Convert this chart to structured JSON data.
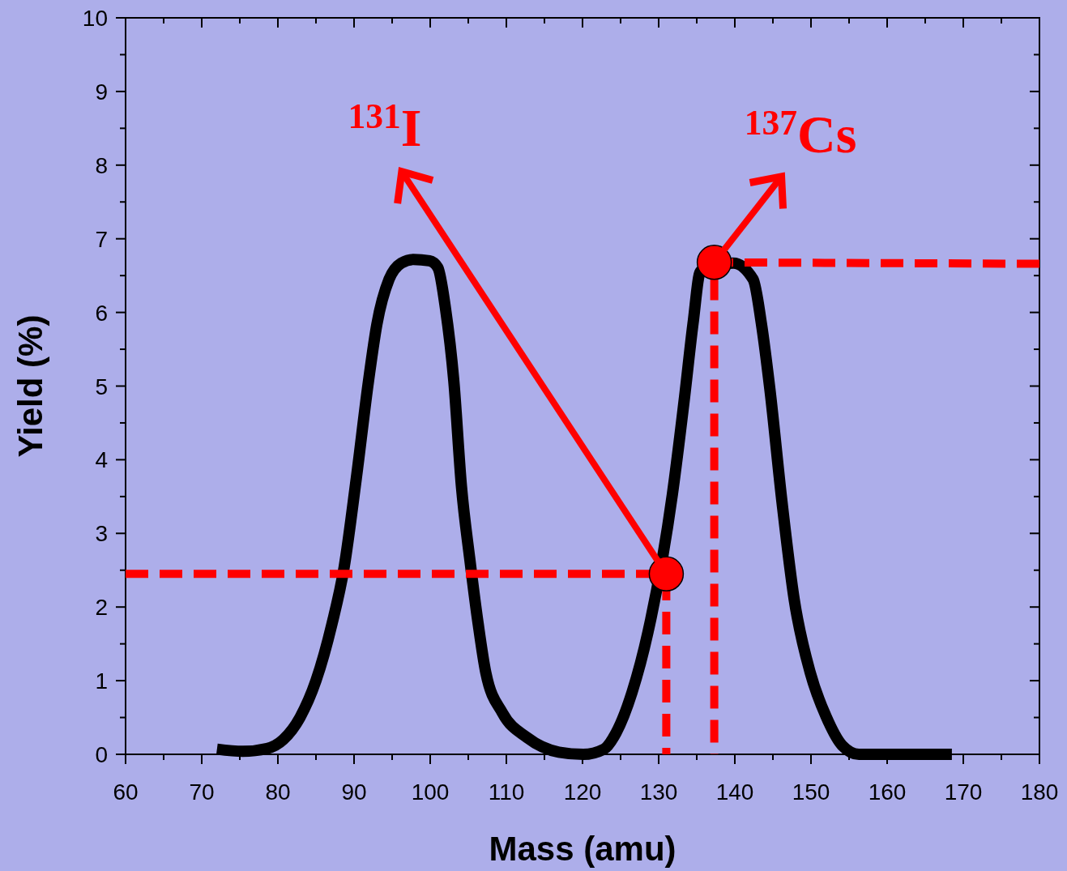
{
  "chart_data": {
    "type": "line",
    "xlabel": "Mass (amu)",
    "ylabel": "Yield (%)",
    "xlim": [
      60,
      180
    ],
    "ylim": [
      0,
      10
    ],
    "xticks": [
      60,
      {
        "value": 65,
        "label": null
      },
      70,
      {
        "value": 75,
        "label": null
      },
      80,
      {
        "value": 85,
        "label": null
      },
      90,
      {
        "value": 95,
        "label": null
      },
      100,
      {
        "value": 105,
        "label": null
      },
      110,
      {
        "value": 115,
        "label": null
      },
      120,
      {
        "value": 125,
        "label": null
      },
      130,
      {
        "value": 135,
        "label": null
      },
      140,
      {
        "value": 145,
        "label": null
      },
      150,
      {
        "value": 155,
        "label": null
      },
      160,
      {
        "value": 165,
        "label": null
      },
      170,
      {
        "value": 175,
        "label": null
      },
      180
    ],
    "yticks": [
      0,
      {
        "value": 0.5,
        "label": null
      },
      1,
      {
        "value": 1.5,
        "label": null
      },
      2,
      {
        "value": 2.5,
        "label": null
      },
      3,
      {
        "value": 3.5,
        "label": null
      },
      4,
      {
        "value": 4.5,
        "label": null
      },
      5,
      {
        "value": 5.5,
        "label": null
      },
      6,
      {
        "value": 6.5,
        "label": null
      },
      7,
      {
        "value": 7.5,
        "label": null
      },
      8,
      {
        "value": 8.5,
        "label": null
      },
      9,
      {
        "value": 9.5,
        "label": null
      },
      10
    ],
    "grid": false,
    "series": [
      {
        "color": "#000000",
        "line_style": "solid",
        "marker": "none",
        "x": [
          72,
          75.4,
          78.6,
          80.7,
          82.9,
          85,
          87.1,
          88.7,
          90.3,
          91.9,
          93,
          94.6,
          96.2,
          97.8,
          99.9,
          101,
          102,
          103.1,
          104.1,
          105.2,
          106.3,
          107.3,
          109.5,
          112.7,
          116.9,
          120.1,
          122.8,
          124.4,
          126.5,
          128.6,
          130.2,
          131.8,
          133.4,
          134.5,
          135.5,
          137.1,
          139.8,
          142.4,
          143.5,
          144.6,
          146.2,
          147.8,
          149.9,
          152,
          154.1,
          156.3,
          158.4,
          160.5,
          163.7,
          168.5
        ],
        "values": [
          0.07,
          0.04,
          0.08,
          0.2,
          0.5,
          1.0,
          1.77,
          2.54,
          3.75,
          5.07,
          5.84,
          6.45,
          6.67,
          6.72,
          6.7,
          6.61,
          6.06,
          5.07,
          3.64,
          2.65,
          1.77,
          1.11,
          0.56,
          0.23,
          0.03,
          0,
          0.07,
          0.29,
          0.84,
          1.66,
          null,
          3.53,
          4.85,
          5.84,
          6.56,
          null,
          6.67,
          6.45,
          5.84,
          4.96,
          3.42,
          2.1,
          1.11,
          0.51,
          0.12,
          0,
          0,
          0,
          0,
          0
        ]
      },
      {
        "type": "line",
        "color": "#ff0000",
        "line_style": "dashed",
        "marker": "none",
        "x": [
          60,
          131,
          131
        ],
        "values": [
          2.45,
          2.45,
          0
        ]
      },
      {
        "type": "line",
        "color": "#ff0000",
        "line_style": "dashed",
        "marker": "none",
        "x": [
          180,
          137.3,
          137.3
        ],
        "values": [
          6.66,
          6.68,
          0
        ]
      },
      {
        "type": "scatter",
        "color": "#ff0000",
        "marker": "circle",
        "x": [
          131,
          137.3
        ],
        "values": [
          2.45,
          6.68
        ]
      }
    ],
    "annotations": [
      "$^{131}$I",
      "$^{137}$Cs"
    ]
  }
}
